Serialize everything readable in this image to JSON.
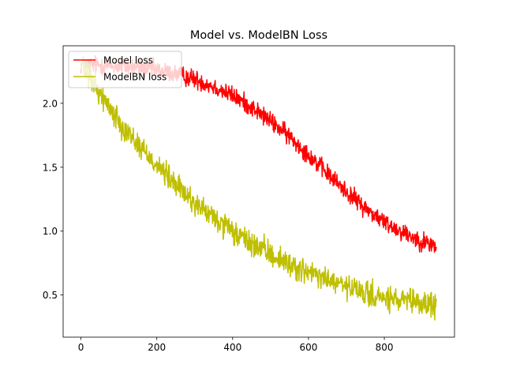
{
  "chart_data": {
    "type": "line",
    "title": "Model vs. ModelBN Loss",
    "xlabel": "",
    "ylabel": "",
    "xlim": [
      -47,
      985
    ],
    "ylim": [
      0.17,
      2.45
    ],
    "xticks": [
      0,
      200,
      400,
      600,
      800
    ],
    "yticks": [
      0.5,
      1.0,
      1.5,
      2.0
    ],
    "xtick_labels": [
      "0",
      "200",
      "400",
      "600",
      "800"
    ],
    "ytick_labels": [
      "0.5",
      "1.0",
      "1.5",
      "2.0"
    ],
    "legend_position": "top-left",
    "grid": false,
    "series": [
      {
        "name": "Model loss",
        "color": "#ff0000",
        "noise": 0.045,
        "x": [
          0,
          50,
          100,
          150,
          200,
          250,
          300,
          350,
          400,
          450,
          500,
          550,
          600,
          650,
          700,
          750,
          800,
          850,
          900,
          937
        ],
        "y": [
          2.3,
          2.3,
          2.29,
          2.28,
          2.26,
          2.23,
          2.19,
          2.13,
          2.06,
          1.97,
          1.86,
          1.74,
          1.6,
          1.45,
          1.31,
          1.18,
          1.07,
          0.99,
          0.92,
          0.88
        ]
      },
      {
        "name": "ModelBN loss",
        "color": "#bfbf00",
        "noise": 0.06,
        "x": [
          0,
          50,
          100,
          150,
          200,
          250,
          300,
          350,
          400,
          450,
          500,
          550,
          600,
          650,
          700,
          750,
          800,
          850,
          900,
          937
        ],
        "y": [
          2.3,
          2.08,
          1.86,
          1.68,
          1.52,
          1.36,
          1.22,
          1.1,
          0.99,
          0.9,
          0.82,
          0.74,
          0.67,
          0.62,
          0.56,
          0.51,
          0.47,
          0.45,
          0.43,
          0.42
        ]
      }
    ]
  }
}
